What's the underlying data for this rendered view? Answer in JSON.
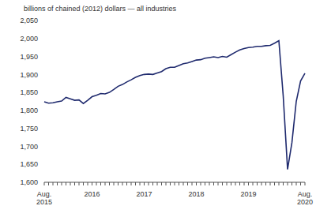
{
  "chart_data": {
    "type": "line",
    "y_label": "billions of chained (2012) dollars — all industries",
    "categories": [
      "Aug. 2015",
      null,
      null,
      null,
      null,
      null,
      null,
      null,
      null,
      null,
      null,
      "2016",
      null,
      null,
      null,
      null,
      null,
      null,
      null,
      null,
      null,
      null,
      null,
      "2017",
      null,
      null,
      null,
      null,
      null,
      null,
      null,
      null,
      null,
      null,
      null,
      "2018",
      null,
      null,
      null,
      null,
      null,
      null,
      null,
      null,
      null,
      null,
      null,
      "2019",
      null,
      null,
      null,
      null,
      null,
      null,
      null,
      null,
      null,
      null,
      null,
      null,
      "Aug. 2020"
    ],
    "values": [
      1824,
      1820,
      1821,
      1824,
      1826,
      1836,
      1832,
      1828,
      1829,
      1819,
      1828,
      1838,
      1842,
      1847,
      1846,
      1850,
      1858,
      1867,
      1872,
      1879,
      1885,
      1892,
      1897,
      1900,
      1901,
      1900,
      1904,
      1908,
      1916,
      1920,
      1920,
      1925,
      1930,
      1932,
      1936,
      1940,
      1941,
      1945,
      1947,
      1949,
      1947,
      1950,
      1948,
      1955,
      1962,
      1968,
      1972,
      1975,
      1976,
      1978,
      1978,
      1980,
      1981,
      1987,
      1994,
      1840,
      1636,
      1710,
      1825,
      1882,
      1903
    ],
    "color": "#1f2a6e",
    "ylim": [
      1600,
      2050
    ],
    "yticks": [
      {
        "value": 1600,
        "label": "1,600"
      },
      {
        "value": 1650,
        "label": "1,650"
      },
      {
        "value": 1700,
        "label": "1,700"
      },
      {
        "value": 1750,
        "label": "1,750"
      },
      {
        "value": 1800,
        "label": "1,800"
      },
      {
        "value": 1850,
        "label": "1,850"
      },
      {
        "value": 1900,
        "label": "1,900"
      },
      {
        "value": 1950,
        "label": "1,950"
      },
      {
        "value": 2000,
        "label": "2,000"
      },
      {
        "value": 2050,
        "label": "2,050"
      }
    ],
    "grid": false
  }
}
